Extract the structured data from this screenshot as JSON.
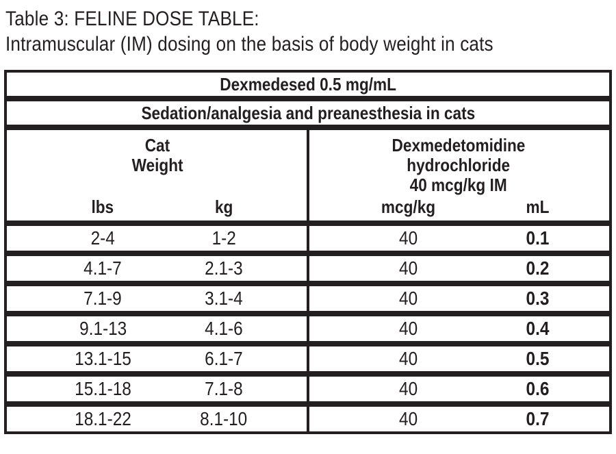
{
  "colors": {
    "ink": "#231f20",
    "paper": "#ffffff"
  },
  "title": {
    "line1": "Table 3: FELINE DOSE TABLE:",
    "line2": "Intramuscular (IM) dosing on the basis of body weight in cats"
  },
  "table": {
    "banner_product": "Dexmedesed 0.5 mg/mL",
    "banner_indication": "Sedation/analgesia and preanesthesia in cats",
    "left_group": {
      "line1": "Cat",
      "line2": "Weight",
      "col1": "lbs",
      "col2": "kg"
    },
    "right_group": {
      "line1": "Dexmedetomidine",
      "line2": "hydrochloride",
      "line3": "40 mcg/kg IM",
      "col1": "mcg/kg",
      "col2": "mL"
    },
    "rows": [
      {
        "lbs": "2-4",
        "kg": "1-2",
        "mcgkg": "40",
        "ml": "0.1"
      },
      {
        "lbs": "4.1-7",
        "kg": "2.1-3",
        "mcgkg": "40",
        "ml": "0.2"
      },
      {
        "lbs": "7.1-9",
        "kg": "3.1-4",
        "mcgkg": "40",
        "ml": "0.3"
      },
      {
        "lbs": "9.1-13",
        "kg": "4.1-6",
        "mcgkg": "40",
        "ml": "0.4"
      },
      {
        "lbs": "13.1-15",
        "kg": "6.1-7",
        "mcgkg": "40",
        "ml": "0.5"
      },
      {
        "lbs": "15.1-18",
        "kg": "7.1-8",
        "mcgkg": "40",
        "ml": "0.6"
      },
      {
        "lbs": "18.1-22",
        "kg": "8.1-10",
        "mcgkg": "40",
        "ml": "0.7"
      }
    ]
  }
}
